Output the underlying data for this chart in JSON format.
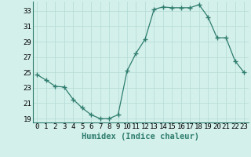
{
  "x": [
    0,
    1,
    2,
    3,
    4,
    5,
    6,
    7,
    8,
    9,
    10,
    11,
    12,
    13,
    14,
    15,
    16,
    17,
    18,
    19,
    20,
    21,
    22,
    23
  ],
  "y": [
    24.7,
    24.0,
    23.2,
    23.1,
    21.5,
    20.4,
    19.5,
    19.0,
    19.0,
    19.5,
    25.2,
    27.5,
    29.3,
    33.2,
    33.5,
    33.4,
    33.4,
    33.4,
    33.8,
    32.2,
    29.5,
    29.5,
    26.5,
    25.0
  ],
  "line_color": "#2e7d6e",
  "marker": "+",
  "marker_size": 4,
  "marker_lw": 1.0,
  "line_width": 0.9,
  "bg_color": "#d4f0eb",
  "grid_color": "#b8ddd8",
  "xlabel": "Humidex (Indice chaleur)",
  "ylim": [
    18.5,
    34.2
  ],
  "xlim": [
    -0.5,
    23.5
  ],
  "yticks": [
    19,
    21,
    23,
    25,
    27,
    29,
    31,
    33
  ],
  "xticks": [
    0,
    1,
    2,
    3,
    4,
    5,
    6,
    7,
    8,
    9,
    10,
    11,
    12,
    13,
    14,
    15,
    16,
    17,
    18,
    19,
    20,
    21,
    22,
    23
  ],
  "tick_label_fontsize": 6.5,
  "xlabel_fontsize": 7.5
}
